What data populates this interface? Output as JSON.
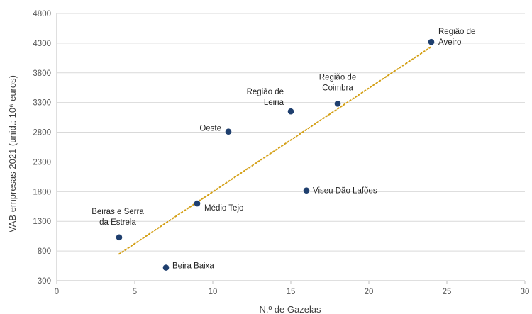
{
  "chart_data": {
    "type": "scatter",
    "xlabel": "N.º de Gazelas",
    "ylabel": "VAB empresas 2021 (unid.: 10⁶ euros)",
    "xlim": [
      0,
      30
    ],
    "ylim": [
      300,
      4800
    ],
    "x_ticks": [
      0,
      5,
      10,
      15,
      20,
      25,
      30
    ],
    "y_ticks": [
      300,
      800,
      1300,
      1800,
      2300,
      2800,
      3300,
      3800,
      4300,
      4800
    ],
    "grid": "horizontal",
    "legend": "none",
    "colors": {
      "marker": "#1f3f6e",
      "trendline": "#d4a017",
      "grid": "#d9d9d9",
      "axis": "#bfbfbf"
    },
    "trendline": {
      "type": "linear",
      "style": "dotted",
      "x": [
        4,
        24
      ],
      "y": [
        750,
        4240
      ]
    },
    "points": [
      {
        "label_lines": [
          "Região de",
          "Aveiro"
        ],
        "x": 24,
        "y": 4320
      },
      {
        "label_lines": [
          "Região de",
          "Coimbra"
        ],
        "x": 18,
        "y": 3280
      },
      {
        "label_lines": [
          "Região de",
          "Leiria"
        ],
        "x": 15,
        "y": 3150
      },
      {
        "label_lines": [
          "Oeste"
        ],
        "x": 11,
        "y": 2810
      },
      {
        "label_lines": [
          "Viseu Dão Lafões"
        ],
        "x": 16,
        "y": 1820
      },
      {
        "label_lines": [
          "Médio Tejo"
        ],
        "x": 9,
        "y": 1600
      },
      {
        "label_lines": [
          "Beiras e Serra",
          "da Estrela"
        ],
        "x": 4,
        "y": 1030
      },
      {
        "label_lines": [
          "Beira Baixa"
        ],
        "x": 7,
        "y": 520
      }
    ]
  }
}
